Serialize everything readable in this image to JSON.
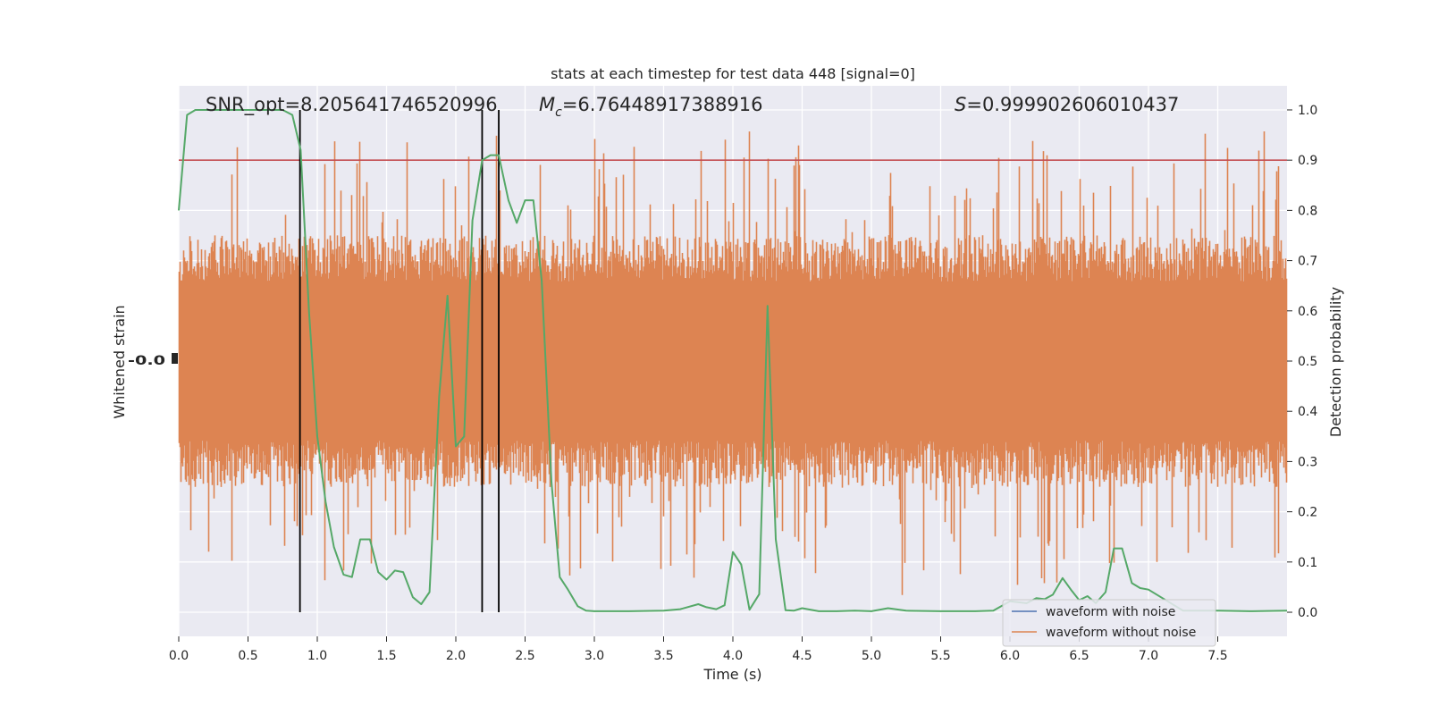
{
  "chart_data": {
    "type": "line",
    "title": "stats at each timestep for test data 448 [signal=0]",
    "xlabel": "Time (s)",
    "ylabel_left": "Whitened strain",
    "ylabel_right": "Detection probability",
    "xlim": [
      0,
      8.0
    ],
    "ylim_right": [
      -0.048,
      1.048
    ],
    "grid": true,
    "legend_placement": "lower right",
    "x_ticks": [
      "0.0",
      "0.5",
      "1.0",
      "1.5",
      "2.0",
      "2.5",
      "3.0",
      "3.5",
      "4.0",
      "4.5",
      "5.0",
      "5.5",
      "6.0",
      "6.5",
      "7.0",
      "7.5"
    ],
    "x_tick_values": [
      0,
      0.5,
      1,
      1.5,
      2,
      2.5,
      3,
      3.5,
      4,
      4.5,
      5,
      5.5,
      6,
      6.5,
      7,
      7.5
    ],
    "y_right_ticks": [
      "0.0",
      "0.1",
      "0.2",
      "0.3",
      "0.4",
      "0.5",
      "0.6",
      "0.7",
      "0.8",
      "0.9",
      "1.0"
    ],
    "y_right_tick_values": [
      0,
      0.1,
      0.2,
      0.3,
      0.4,
      0.5,
      0.6,
      0.7,
      0.8,
      0.9,
      1.0
    ],
    "left_axis_tick_label_glyphs": "-0.0",
    "annotations": {
      "snr": "SNR_opt=8.205641746520996",
      "mc_symbol": "M",
      "mc_subscript": "c",
      "mc_value": "=6.76448917388916",
      "s_symbol": "S",
      "s_value": "=0.999902606010437"
    },
    "threshold": {
      "value": 0.9,
      "color": "#c44e52"
    },
    "vertical_lines_x": [
      0.875,
      2.19,
      2.31
    ],
    "series": [
      {
        "name": "waveform with noise",
        "color": "#4c72b0",
        "role": "strain_noisy"
      },
      {
        "name": "waveform without noise",
        "color": "#dd8452",
        "role": "strain_clean",
        "band_center": 0.5,
        "band_half_width_typical": 0.22,
        "peak_max": 0.5
      },
      {
        "name": "",
        "color": "#55a868",
        "role": "detection_probability",
        "x": [
          0,
          0.06,
          0.12,
          0.25,
          0.5,
          0.62,
          0.75,
          0.82,
          0.88,
          0.94,
          1.0,
          1.06,
          1.12,
          1.19,
          1.25,
          1.31,
          1.38,
          1.44,
          1.5,
          1.56,
          1.62,
          1.69,
          1.75,
          1.81,
          1.88,
          1.94,
          2.0,
          2.06,
          2.12,
          2.19,
          2.25,
          2.31,
          2.38,
          2.44,
          2.5,
          2.56,
          2.62,
          2.69,
          2.75,
          2.81,
          2.88,
          2.94,
          3.0,
          3.25,
          3.5,
          3.62,
          3.75,
          3.81,
          3.88,
          3.94,
          4.0,
          4.06,
          4.12,
          4.19,
          4.25,
          4.31,
          4.38,
          4.44,
          4.5,
          4.62,
          4.75,
          4.88,
          5.0,
          5.12,
          5.25,
          5.5,
          5.75,
          5.88,
          6.0,
          6.12,
          6.19,
          6.25,
          6.31,
          6.38,
          6.44,
          6.5,
          6.56,
          6.62,
          6.69,
          6.75,
          6.81,
          6.88,
          6.94,
          7.0,
          7.25,
          7.5,
          7.75,
          8.0
        ],
        "y": [
          0.8,
          0.99,
          1.0,
          1.0,
          1.0,
          1.0,
          1.0,
          0.99,
          0.92,
          0.6,
          0.35,
          0.22,
          0.13,
          0.075,
          0.07,
          0.145,
          0.145,
          0.08,
          0.065,
          0.083,
          0.08,
          0.03,
          0.016,
          0.04,
          0.43,
          0.63,
          0.33,
          0.35,
          0.78,
          0.9,
          0.91,
          0.91,
          0.82,
          0.775,
          0.82,
          0.82,
          0.66,
          0.26,
          0.07,
          0.045,
          0.012,
          0.003,
          0.002,
          0.002,
          0.003,
          0.006,
          0.016,
          0.01,
          0.006,
          0.014,
          0.12,
          0.095,
          0.005,
          0.036,
          0.61,
          0.145,
          0.004,
          0.003,
          0.008,
          0.002,
          0.002,
          0.003,
          0.002,
          0.008,
          0.003,
          0.002,
          0.002,
          0.003,
          0.022,
          0.018,
          0.028,
          0.026,
          0.035,
          0.068,
          0.045,
          0.024,
          0.032,
          0.018,
          0.04,
          0.127,
          0.127,
          0.058,
          0.048,
          0.045,
          0.003,
          0.003,
          0.002,
          0.003
        ]
      }
    ]
  }
}
